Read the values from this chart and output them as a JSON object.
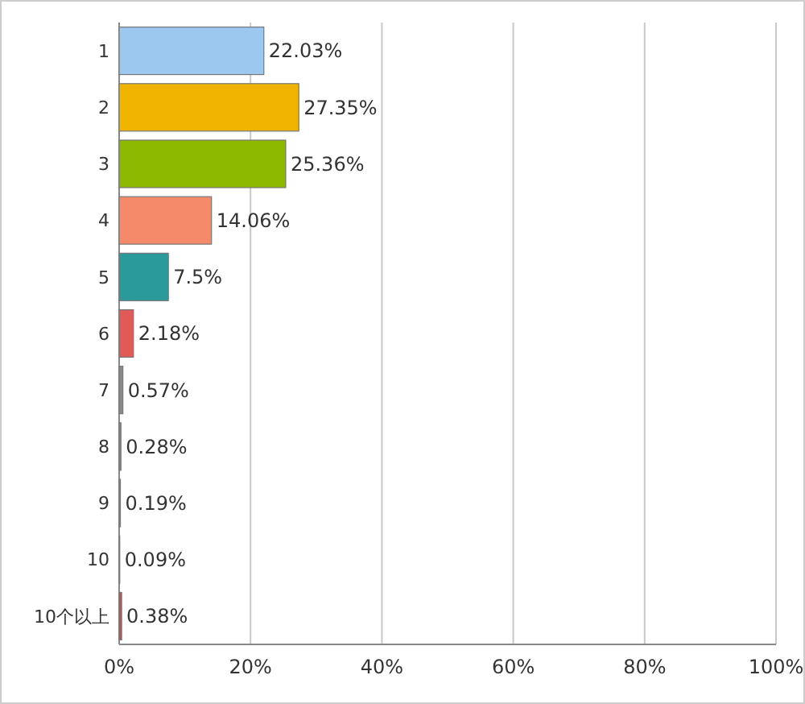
{
  "chart_data": {
    "type": "bar",
    "orientation": "horizontal",
    "categories": [
      "1",
      "2",
      "3",
      "4",
      "5",
      "6",
      "7",
      "8",
      "9",
      "10",
      "10个以上"
    ],
    "values": [
      22.03,
      27.35,
      25.36,
      14.06,
      7.5,
      2.18,
      0.57,
      0.28,
      0.19,
      0.09,
      0.38
    ],
    "colors": [
      "#9cc8f0",
      "#f0b400",
      "#8cb800",
      "#f58a6a",
      "#2a9a9a",
      "#e05a5a",
      "#8a8a8a",
      "#8a8a8a",
      "#8a8a8a",
      "#8a8a8a",
      "#c05050"
    ],
    "value_labels": [
      "22.03%",
      "27.35%",
      "25.36%",
      "14.06%",
      "7.5%",
      "2.18%",
      "0.57%",
      "0.28%",
      "0.19%",
      "0.09%",
      "0.38%"
    ],
    "xlim": [
      0,
      100
    ],
    "xticks": [
      {
        "value": 0,
        "label": "0%"
      },
      {
        "value": 20,
        "label": "20%"
      },
      {
        "value": 40,
        "label": "40%"
      },
      {
        "value": 60,
        "label": "60%"
      },
      {
        "value": 80,
        "label": "80%"
      },
      {
        "value": 100,
        "label": "100%"
      }
    ],
    "grid": "x"
  }
}
